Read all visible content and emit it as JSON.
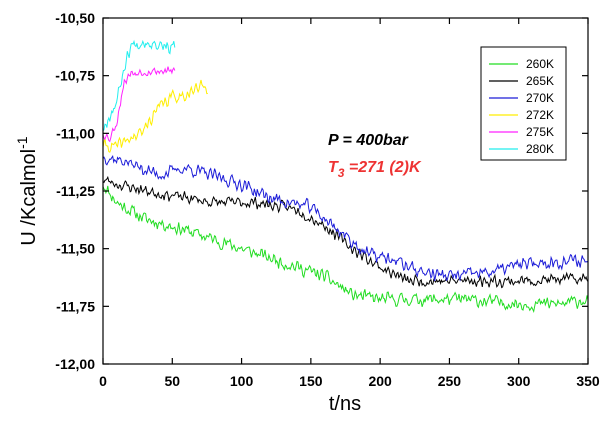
{
  "chart_data": {
    "type": "line",
    "title": "",
    "xlabel": "t/ns",
    "ylabel_main": "U /Kcalmol",
    "ylabel_sup": "-1",
    "xlim": [
      0,
      350
    ],
    "ylim": [
      -12.0,
      -10.5
    ],
    "xticks": [
      0,
      50,
      100,
      150,
      200,
      250,
      300,
      350
    ],
    "xtick_labels": [
      "0",
      "50",
      "100",
      "150",
      "200",
      "250",
      "300",
      "350"
    ],
    "yticks": [
      -12.0,
      -11.75,
      -11.5,
      -11.25,
      -11.0,
      -10.75,
      -10.5
    ],
    "ytick_labels": [
      "-12,00",
      "-11,75",
      "-11,50",
      "-11,25",
      "-11,00",
      "-10,75",
      "-10,50"
    ],
    "grid": false,
    "legend_position": "top-right",
    "annotations": {
      "pressure": {
        "text": "P = 400bar",
        "color": "#000000"
      },
      "t3": {
        "main": "T",
        "sub": "3",
        "rest": " =271 (2)K",
        "color": "#ee3333"
      }
    },
    "series": [
      {
        "name": "260K",
        "color": "#22dd22",
        "noise": 0.035,
        "seed": 11,
        "x": [
          0,
          10,
          30,
          60,
          100,
          130,
          160,
          180,
          200,
          230,
          260,
          300,
          330,
          350
        ],
        "y": [
          -11.22,
          -11.3,
          -11.37,
          -11.42,
          -11.5,
          -11.56,
          -11.62,
          -11.7,
          -11.72,
          -11.72,
          -11.72,
          -11.74,
          -11.74,
          -11.72
        ]
      },
      {
        "name": "265K",
        "color": "#000000",
        "noise": 0.03,
        "seed": 23,
        "x": [
          0,
          10,
          40,
          80,
          110,
          140,
          160,
          180,
          200,
          220,
          260,
          300,
          350
        ],
        "y": [
          -11.2,
          -11.22,
          -11.26,
          -11.3,
          -11.3,
          -11.33,
          -11.4,
          -11.5,
          -11.58,
          -11.64,
          -11.64,
          -11.64,
          -11.63
        ]
      },
      {
        "name": "270K",
        "color": "#1c1cd8",
        "noise": 0.035,
        "seed": 37,
        "x": [
          0,
          15,
          40,
          60,
          100,
          120,
          150,
          170,
          190,
          210,
          230,
          250,
          280,
          300,
          320,
          350
        ],
        "y": [
          -11.1,
          -11.12,
          -11.18,
          -11.15,
          -11.22,
          -11.28,
          -11.32,
          -11.42,
          -11.52,
          -11.55,
          -11.6,
          -11.62,
          -11.6,
          -11.57,
          -11.56,
          -11.55
        ]
      },
      {
        "name": "272K",
        "color": "#ffee00",
        "noise": 0.035,
        "seed": 41,
        "x": [
          0,
          10,
          20,
          28,
          35,
          42,
          50,
          60,
          70,
          76
        ],
        "y": [
          -11.05,
          -11.06,
          -11.02,
          -11.0,
          -10.93,
          -10.88,
          -10.84,
          -10.83,
          -10.8,
          -10.8
        ]
      },
      {
        "name": "275K",
        "color": "#ff22ff",
        "noise": 0.025,
        "seed": 53,
        "x": [
          0,
          5,
          10,
          15,
          20,
          30,
          40,
          52
        ],
        "y": [
          -11.0,
          -11.02,
          -10.95,
          -10.78,
          -10.74,
          -10.73,
          -10.73,
          -10.73
        ]
      },
      {
        "name": "280K",
        "color": "#22eeee",
        "noise": 0.035,
        "seed": 67,
        "x": [
          0,
          5,
          10,
          15,
          20,
          30,
          40,
          52
        ],
        "y": [
          -10.98,
          -10.92,
          -10.86,
          -10.72,
          -10.62,
          -10.6,
          -10.61,
          -10.63
        ]
      }
    ]
  }
}
